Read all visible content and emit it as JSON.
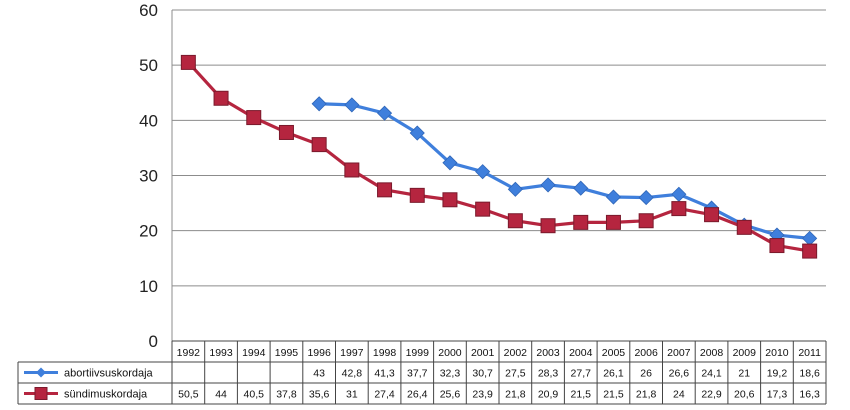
{
  "chart_data": {
    "type": "line",
    "title": "",
    "xlabel": "",
    "ylabel": "",
    "ylim": [
      0,
      60
    ],
    "yticks": [
      "0",
      "10",
      "20",
      "30",
      "40",
      "50",
      "60"
    ],
    "grid": true,
    "legend": "data-table-left",
    "categories": [
      "1992",
      "1993",
      "1994",
      "1995",
      "1996",
      "1997",
      "1998",
      "1999",
      "2000",
      "2001",
      "2002",
      "2003",
      "2004",
      "2005",
      "2006",
      "2007",
      "2008",
      "2009",
      "2010",
      "2011"
    ],
    "series": [
      {
        "name": "abortiivsuskordaja",
        "color": "#3f7fdc",
        "marker": "diamond",
        "values": [
          null,
          null,
          null,
          null,
          43,
          42.8,
          41.3,
          37.7,
          32.3,
          30.7,
          27.5,
          28.3,
          27.7,
          26.1,
          26,
          26.6,
          24.1,
          21,
          19.2,
          18.6
        ],
        "labels": [
          "",
          "",
          "",
          "",
          "43",
          "42,8",
          "41,3",
          "37,7",
          "32,3",
          "30,7",
          "27,5",
          "28,3",
          "27,7",
          "26,1",
          "26",
          "26,6",
          "24,1",
          "21",
          "19,2",
          "18,6"
        ]
      },
      {
        "name": "sündimuskordaja",
        "color": "#b5253f",
        "marker": "square",
        "values": [
          50.5,
          44,
          40.5,
          37.8,
          35.6,
          31,
          27.4,
          26.4,
          25.6,
          23.9,
          21.8,
          20.9,
          21.5,
          21.5,
          21.8,
          24,
          22.9,
          20.6,
          17.3,
          16.3
        ],
        "labels": [
          "50,5",
          "44",
          "40,5",
          "37,8",
          "35,6",
          "31",
          "27,4",
          "26,4",
          "25,6",
          "23,9",
          "21,8",
          "20,9",
          "21,5",
          "21,5",
          "21,8",
          "24",
          "22,9",
          "20,6",
          "17,3",
          "16,3"
        ]
      }
    ]
  }
}
